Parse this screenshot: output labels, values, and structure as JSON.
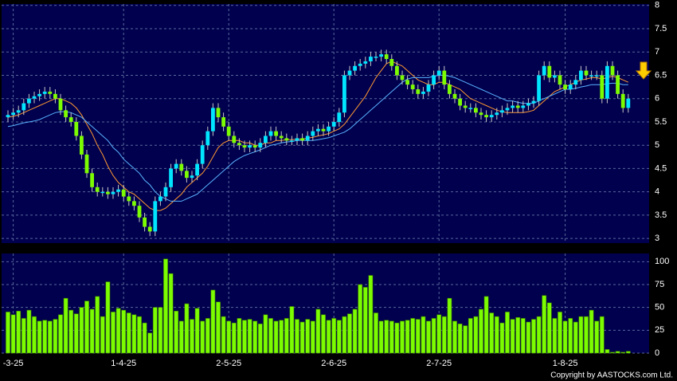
{
  "chart_data": {
    "type": "candlestick",
    "categories": [
      null,
      "-3-25",
      null,
      null,
      null,
      null,
      null,
      null,
      null,
      null,
      null,
      null,
      null,
      null,
      null,
      null,
      null,
      null,
      null,
      null,
      null,
      null,
      "1-4-25",
      null,
      null,
      null,
      null,
      null,
      null,
      null,
      null,
      null,
      null,
      null,
      null,
      null,
      null,
      null,
      null,
      null,
      null,
      null,
      "2-5-25",
      null,
      null,
      null,
      null,
      null,
      null,
      null,
      null,
      null,
      null,
      null,
      null,
      null,
      null,
      null,
      null,
      null,
      null,
      null,
      "2-6-25",
      null,
      null,
      null,
      null,
      null,
      null,
      null,
      null,
      null,
      null,
      null,
      null,
      null,
      null,
      null,
      null,
      null,
      null,
      null,
      "2-7-25",
      null,
      null,
      null,
      null,
      null,
      null,
      null,
      null,
      null,
      null,
      null,
      null,
      null,
      null,
      null,
      null,
      null,
      null,
      null,
      null,
      null,
      null,
      null,
      "1-8-25",
      null,
      null,
      null,
      null,
      null,
      null,
      null,
      null,
      null,
      null,
      null,
      null
    ],
    "open": [
      5.6,
      5.65,
      5.7,
      5.75,
      5.9,
      6.0,
      6.05,
      6.1,
      6.15,
      6.1,
      6.0,
      5.75,
      5.6,
      5.5,
      5.2,
      4.8,
      4.4,
      4.1,
      4.0,
      4.0,
      3.95,
      4.0,
      4.05,
      3.9,
      3.8,
      3.7,
      3.45,
      3.25,
      3.15,
      3.8,
      3.9,
      4.1,
      4.5,
      4.6,
      4.45,
      4.3,
      4.35,
      4.6,
      5.0,
      5.3,
      5.8,
      5.6,
      5.4,
      5.2,
      5.05,
      5.0,
      4.95,
      5.0,
      4.95,
      5.05,
      5.2,
      5.3,
      5.2,
      5.15,
      5.1,
      5.1,
      5.15,
      5.1,
      5.2,
      5.3,
      5.35,
      5.3,
      5.4,
      5.5,
      5.7,
      6.5,
      6.6,
      6.7,
      6.75,
      6.8,
      6.9,
      6.9,
      6.95,
      6.85,
      6.7,
      6.5,
      6.4,
      6.3,
      6.2,
      6.1,
      6.15,
      6.3,
      6.5,
      6.6,
      6.3,
      6.1,
      6.0,
      5.85,
      5.8,
      5.8,
      5.7,
      5.65,
      5.6,
      5.65,
      5.7,
      5.75,
      5.8,
      5.85,
      5.8,
      5.85,
      5.9,
      5.95,
      6.5,
      6.7,
      6.45,
      6.5,
      6.3,
      6.2,
      6.3,
      6.4,
      6.6,
      6.5,
      6.5,
      6.5,
      6.0,
      6.7,
      6.5,
      6.1,
      5.8
    ],
    "high": [
      5.75,
      5.8,
      5.85,
      6.0,
      6.1,
      6.15,
      6.2,
      6.25,
      6.25,
      6.2,
      6.1,
      5.85,
      5.7,
      5.6,
      5.3,
      4.9,
      4.5,
      4.2,
      4.1,
      4.1,
      4.1,
      4.15,
      4.15,
      4.0,
      3.9,
      3.8,
      3.55,
      3.35,
      3.9,
      4.0,
      4.2,
      4.6,
      4.7,
      4.7,
      4.55,
      4.45,
      4.7,
      5.1,
      5.4,
      5.9,
      5.9,
      5.7,
      5.5,
      5.3,
      5.15,
      5.1,
      5.1,
      5.1,
      5.15,
      5.3,
      5.4,
      5.4,
      5.3,
      5.25,
      5.2,
      5.25,
      5.25,
      5.3,
      5.4,
      5.45,
      5.45,
      5.5,
      5.6,
      5.8,
      6.6,
      6.7,
      6.8,
      6.85,
      6.9,
      7.0,
      7.0,
      7.05,
      7.05,
      6.95,
      6.8,
      6.6,
      6.5,
      6.4,
      6.3,
      6.25,
      6.4,
      6.6,
      6.7,
      6.7,
      6.4,
      6.2,
      6.1,
      5.95,
      5.9,
      5.9,
      5.8,
      5.75,
      5.75,
      5.8,
      5.85,
      5.9,
      5.95,
      5.95,
      5.95,
      6.0,
      6.05,
      6.6,
      6.8,
      6.8,
      6.6,
      6.6,
      6.4,
      6.4,
      6.5,
      6.7,
      6.7,
      6.6,
      6.6,
      6.6,
      6.8,
      6.8,
      6.6,
      6.2,
      6.1
    ],
    "low": [
      5.5,
      5.55,
      5.6,
      5.65,
      5.8,
      5.9,
      5.95,
      6.0,
      6.0,
      5.9,
      5.65,
      5.5,
      5.4,
      5.1,
      4.7,
      4.3,
      4.0,
      3.9,
      3.9,
      3.85,
      3.85,
      3.9,
      3.8,
      3.7,
      3.6,
      3.35,
      3.15,
      3.05,
      3.05,
      3.7,
      3.8,
      4.0,
      4.4,
      4.35,
      4.2,
      4.2,
      4.25,
      4.5,
      4.9,
      5.2,
      5.5,
      5.3,
      5.1,
      4.95,
      4.9,
      4.85,
      4.85,
      4.85,
      4.85,
      4.95,
      5.1,
      5.1,
      5.05,
      5.0,
      5.0,
      5.0,
      5.0,
      5.0,
      5.1,
      5.2,
      5.2,
      5.2,
      5.3,
      5.4,
      5.6,
      6.4,
      6.5,
      6.6,
      6.65,
      6.7,
      6.8,
      6.8,
      6.75,
      6.6,
      6.4,
      6.3,
      6.2,
      6.1,
      6.0,
      6.0,
      6.05,
      6.2,
      6.4,
      6.2,
      6.0,
      5.9,
      5.75,
      5.7,
      5.7,
      5.6,
      5.55,
      5.5,
      5.5,
      5.55,
      5.6,
      5.65,
      5.7,
      5.7,
      5.7,
      5.75,
      5.8,
      5.85,
      6.4,
      6.35,
      6.35,
      6.2,
      6.1,
      6.1,
      6.2,
      6.3,
      6.4,
      6.4,
      6.4,
      5.9,
      5.9,
      6.4,
      6.0,
      5.7,
      5.7
    ],
    "close": [
      5.65,
      5.7,
      5.75,
      5.9,
      6.0,
      6.05,
      6.1,
      6.15,
      6.1,
      6.0,
      5.75,
      5.6,
      5.5,
      5.2,
      4.8,
      4.4,
      4.1,
      4.0,
      4.0,
      3.95,
      4.0,
      4.05,
      3.9,
      3.8,
      3.7,
      3.45,
      3.25,
      3.15,
      3.8,
      3.9,
      4.1,
      4.5,
      4.6,
      4.45,
      4.3,
      4.35,
      4.6,
      5.0,
      5.3,
      5.8,
      5.6,
      5.4,
      5.2,
      5.05,
      5.0,
      4.95,
      5.0,
      4.95,
      5.05,
      5.2,
      5.3,
      5.2,
      5.15,
      5.1,
      5.1,
      5.15,
      5.1,
      5.2,
      5.3,
      5.35,
      5.3,
      5.4,
      5.5,
      5.7,
      6.5,
      6.6,
      6.7,
      6.75,
      6.8,
      6.9,
      6.9,
      6.95,
      6.85,
      6.7,
      6.5,
      6.4,
      6.3,
      6.2,
      6.1,
      6.15,
      6.3,
      6.5,
      6.6,
      6.3,
      6.1,
      6.0,
      5.85,
      5.8,
      5.8,
      5.7,
      5.65,
      5.6,
      5.65,
      5.7,
      5.75,
      5.8,
      5.85,
      5.8,
      5.85,
      5.9,
      5.95,
      6.5,
      6.7,
      6.45,
      6.5,
      6.3,
      6.2,
      6.3,
      6.4,
      6.6,
      6.5,
      6.5,
      6.5,
      6.0,
      6.7,
      6.5,
      6.1,
      5.8,
      6.0
    ],
    "up_color": "#00e5ff",
    "down_color": "#7cfc00",
    "moving_averages": [
      {
        "color": "#ff9933",
        "values": [
          5.6,
          5.62,
          5.65,
          5.7,
          5.75,
          5.8,
          5.85,
          5.9,
          5.95,
          6.0,
          6.0,
          5.95,
          5.9,
          5.8,
          5.65,
          5.45,
          5.25,
          5.0,
          4.8,
          4.55,
          4.35,
          4.2,
          4.1,
          4.0,
          3.95,
          3.85,
          3.75,
          3.65,
          3.6,
          3.6,
          3.65,
          3.75,
          3.85,
          3.95,
          4.1,
          4.2,
          4.3,
          4.4,
          4.55,
          4.75,
          4.95,
          5.05,
          5.1,
          5.1,
          5.1,
          5.05,
          5.05,
          5.0,
          5.0,
          5.05,
          5.05,
          5.1,
          5.1,
          5.12,
          5.12,
          5.13,
          5.13,
          5.15,
          5.17,
          5.2,
          5.22,
          5.25,
          5.3,
          5.35,
          5.45,
          5.6,
          5.75,
          5.9,
          6.05,
          6.25,
          6.45,
          6.6,
          6.75,
          6.8,
          6.75,
          6.7,
          6.6,
          6.5,
          6.4,
          6.35,
          6.3,
          6.3,
          6.35,
          6.35,
          6.3,
          6.25,
          6.2,
          6.1,
          6.0,
          5.95,
          5.9,
          5.85,
          5.8,
          5.75,
          5.72,
          5.7,
          5.7,
          5.7,
          5.7,
          5.72,
          5.75,
          5.85,
          5.95,
          6.05,
          6.15,
          6.2,
          6.25,
          6.3,
          6.35,
          6.4,
          6.42,
          6.45,
          6.45,
          6.42,
          6.45,
          6.48,
          6.45,
          6.4,
          6.35
        ]
      },
      {
        "color": "#5ab4ff",
        "values": [
          5.4,
          5.42,
          5.45,
          5.48,
          5.5,
          5.52,
          5.55,
          5.6,
          5.65,
          5.7,
          5.72,
          5.72,
          5.7,
          5.65,
          5.6,
          5.5,
          5.4,
          5.3,
          5.2,
          5.1,
          4.95,
          4.85,
          4.7,
          4.6,
          4.5,
          4.4,
          4.25,
          4.15,
          4.0,
          3.9,
          3.85,
          3.8,
          3.8,
          3.8,
          3.85,
          3.9,
          3.95,
          4.05,
          4.15,
          4.25,
          4.35,
          4.45,
          4.55,
          4.65,
          4.72,
          4.78,
          4.82,
          4.86,
          4.9,
          4.95,
          5.0,
          5.02,
          5.05,
          5.07,
          5.08,
          5.1,
          5.1,
          5.1,
          5.1,
          5.12,
          5.14,
          5.16,
          5.2,
          5.24,
          5.28,
          5.35,
          5.45,
          5.55,
          5.65,
          5.75,
          5.85,
          5.95,
          6.05,
          6.15,
          6.25,
          6.35,
          6.42,
          6.45,
          6.45,
          6.45,
          6.45,
          6.48,
          6.5,
          6.5,
          6.48,
          6.45,
          6.4,
          6.35,
          6.3,
          6.25,
          6.2,
          6.15,
          6.1,
          6.05,
          6.0,
          5.95,
          5.95,
          5.92,
          5.9,
          5.9,
          5.9,
          5.95,
          6.0,
          6.05,
          6.1,
          6.15,
          6.2,
          6.2,
          6.22,
          6.25,
          6.27,
          6.3,
          6.3,
          6.3,
          6.32,
          6.33,
          6.33,
          6.3,
          6.3
        ]
      }
    ],
    "volume": {
      "axis": "y2",
      "color": "#7cfc00",
      "values": [
        45,
        42,
        46,
        38,
        47,
        40,
        35,
        36,
        35,
        37,
        42,
        60,
        47,
        43,
        50,
        57,
        48,
        62,
        40,
        78,
        45,
        49,
        47,
        44,
        42,
        40,
        33,
        22,
        50,
        50,
        103,
        87,
        46,
        35,
        54,
        37,
        49,
        35,
        38,
        69,
        56,
        40,
        35,
        33,
        38,
        36,
        37,
        35,
        32,
        42,
        38,
        35,
        36,
        38,
        51,
        37,
        34,
        37,
        35,
        48,
        42,
        36,
        38,
        36,
        40,
        43,
        48,
        75,
        72,
        85,
        44,
        35,
        36,
        35,
        33,
        35,
        36,
        38,
        37,
        40,
        35,
        38,
        42,
        40,
        60,
        35,
        32,
        30,
        38,
        40,
        48,
        62,
        44,
        40,
        33,
        45,
        37,
        39,
        38,
        34,
        37,
        40,
        63,
        55,
        38,
        45,
        35,
        38,
        34,
        40,
        40,
        47,
        35,
        40,
        4,
        1,
        2,
        1,
        2
      ]
    },
    "ylim": [
      2.9,
      8.03
    ],
    "yticks": [
      3,
      3.5,
      4,
      4.5,
      5,
      5.5,
      6,
      6.5,
      7,
      7.5,
      8
    ],
    "y2lim": [
      0,
      109
    ],
    "y2ticks": [
      0,
      25,
      50,
      75,
      100
    ],
    "grid": true,
    "credit": "Copyright by AASTOCKS.com Ltd."
  }
}
